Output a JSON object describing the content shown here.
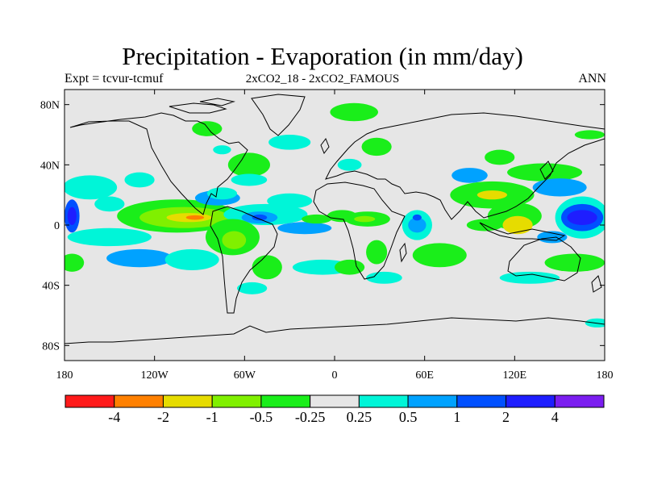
{
  "title": "Precipitation - Evaporation (in mm/day)",
  "left_string": "Expt = tcvur-tcmuf",
  "center_string": "2xCO2_18 - 2xCO2_FAMOUS",
  "right_string": "ANN",
  "map": {
    "projection": "cylindrical equidistant",
    "lon_range": [
      -180,
      180
    ],
    "lat_range": [
      -90,
      90
    ],
    "background_color": "#e6e6e6",
    "lon_ticks": [
      {
        "value": -180,
        "label": "180"
      },
      {
        "value": -120,
        "label": "120W"
      },
      {
        "value": -60,
        "label": "60W"
      },
      {
        "value": 0,
        "label": "0"
      },
      {
        "value": 60,
        "label": "60E"
      },
      {
        "value": 120,
        "label": "120E"
      },
      {
        "value": 180,
        "label": "180"
      }
    ],
    "lat_ticks": [
      {
        "value": 80,
        "label": "80N"
      },
      {
        "value": 40,
        "label": "40N"
      },
      {
        "value": 0,
        "label": "0"
      },
      {
        "value": -40,
        "label": "40S"
      },
      {
        "value": -80,
        "label": "80S"
      }
    ]
  },
  "colorbar": {
    "colors": [
      "#ff1a1a",
      "#ff8000",
      "#e6dc00",
      "#80f000",
      "#1aee1a",
      "#e6e6e6",
      "#00f5d8",
      "#00a2ff",
      "#0050ff",
      "#1e1eff",
      "#7b1ef0"
    ],
    "labels": [
      "-4",
      "-2",
      "-1",
      "-0.5",
      "-0.25",
      "0.25",
      "0.5",
      "1",
      "2",
      "4"
    ]
  },
  "anomalies": [
    {
      "lon": -163,
      "lat": 25,
      "rx": 18,
      "ry": 8,
      "level": 6
    },
    {
      "lon": -150,
      "lat": 14,
      "rx": 10,
      "ry": 5,
      "level": 6
    },
    {
      "lon": -130,
      "lat": 30,
      "rx": 10,
      "ry": 5,
      "level": 6
    },
    {
      "lon": -175,
      "lat": 6,
      "rx": 5,
      "ry": 11,
      "level": 8
    },
    {
      "lon": -175,
      "lat": 6,
      "rx": 3,
      "ry": 6,
      "level": 9
    },
    {
      "lon": -105,
      "lat": 6,
      "rx": 40,
      "ry": 11,
      "level": 4
    },
    {
      "lon": -100,
      "lat": 5,
      "rx": 30,
      "ry": 7,
      "level": 3
    },
    {
      "lon": -97,
      "lat": 5,
      "rx": 15,
      "ry": 3,
      "level": 2
    },
    {
      "lon": -93,
      "lat": 5,
      "rx": 6,
      "ry": 1.5,
      "level": 1
    },
    {
      "lon": -78,
      "lat": 18,
      "rx": 15,
      "ry": 5,
      "level": 7
    },
    {
      "lon": -75,
      "lat": 21,
      "rx": 10,
      "ry": 4,
      "level": 6
    },
    {
      "lon": -46,
      "lat": 7,
      "rx": 28,
      "ry": 7,
      "level": 6
    },
    {
      "lon": -50,
      "lat": 5,
      "rx": 12,
      "ry": 4,
      "level": 7
    },
    {
      "lon": -50,
      "lat": 5,
      "rx": 5,
      "ry": 2,
      "level": 8
    },
    {
      "lon": -57,
      "lat": 40,
      "rx": 14,
      "ry": 8,
      "level": 4
    },
    {
      "lon": -57,
      "lat": 30,
      "rx": 12,
      "ry": 4,
      "level": 6
    },
    {
      "lon": -150,
      "lat": -8,
      "rx": 28,
      "ry": 6,
      "level": 6
    },
    {
      "lon": -130,
      "lat": -22,
      "rx": 22,
      "ry": 6,
      "level": 7
    },
    {
      "lon": -95,
      "lat": -23,
      "rx": 18,
      "ry": 7,
      "level": 6
    },
    {
      "lon": -175,
      "lat": -25,
      "rx": 8,
      "ry": 6,
      "level": 4
    },
    {
      "lon": -68,
      "lat": -8,
      "rx": 18,
      "ry": 12,
      "level": 4
    },
    {
      "lon": -67,
      "lat": -10,
      "rx": 8,
      "ry": 6,
      "level": 3
    },
    {
      "lon": -45,
      "lat": -28,
      "rx": 10,
      "ry": 8,
      "level": 4
    },
    {
      "lon": -55,
      "lat": -42,
      "rx": 10,
      "ry": 4,
      "level": 6
    },
    {
      "lon": -20,
      "lat": -2,
      "rx": 18,
      "ry": 4,
      "level": 7
    },
    {
      "lon": -12,
      "lat": 4,
      "rx": 10,
      "ry": 3,
      "level": 4
    },
    {
      "lon": 5,
      "lat": 6,
      "rx": 10,
      "ry": 4,
      "level": 4
    },
    {
      "lon": 22,
      "lat": 4,
      "rx": 15,
      "ry": 5,
      "level": 4
    },
    {
      "lon": 20,
      "lat": 4,
      "rx": 7,
      "ry": 2,
      "level": 3
    },
    {
      "lon": -30,
      "lat": 16,
      "rx": 15,
      "ry": 5,
      "level": 6
    },
    {
      "lon": -8,
      "lat": -28,
      "rx": 20,
      "ry": 5,
      "level": 6
    },
    {
      "lon": 10,
      "lat": -28,
      "rx": 10,
      "ry": 5,
      "level": 4
    },
    {
      "lon": 28,
      "lat": -18,
      "rx": 7,
      "ry": 8,
      "level": 4
    },
    {
      "lon": 33,
      "lat": -35,
      "rx": 12,
      "ry": 4,
      "level": 6
    },
    {
      "lon": 13,
      "lat": 75,
      "rx": 16,
      "ry": 6,
      "level": 4
    },
    {
      "lon": 28,
      "lat": 52,
      "rx": 10,
      "ry": 6,
      "level": 4
    },
    {
      "lon": -85,
      "lat": 64,
      "rx": 10,
      "ry": 5,
      "level": 4
    },
    {
      "lon": -75,
      "lat": 50,
      "rx": 6,
      "ry": 3,
      "level": 6
    },
    {
      "lon": 10,
      "lat": 40,
      "rx": 8,
      "ry": 4,
      "level": 6
    },
    {
      "lon": 55,
      "lat": 0,
      "rx": 10,
      "ry": 10,
      "level": 6
    },
    {
      "lon": 55,
      "lat": 0,
      "rx": 6,
      "ry": 5,
      "level": 7
    },
    {
      "lon": 55,
      "lat": 5,
      "rx": 3,
      "ry": 2,
      "level": 8
    },
    {
      "lon": 70,
      "lat": -20,
      "rx": 18,
      "ry": 8,
      "level": 4
    },
    {
      "lon": 105,
      "lat": 20,
      "rx": 28,
      "ry": 9,
      "level": 4
    },
    {
      "lon": 105,
      "lat": 20,
      "rx": 10,
      "ry": 3,
      "level": 2
    },
    {
      "lon": 90,
      "lat": 33,
      "rx": 12,
      "ry": 5,
      "level": 7
    },
    {
      "lon": 120,
      "lat": 6,
      "rx": 18,
      "ry": 9,
      "level": 4
    },
    {
      "lon": 122,
      "lat": 0,
      "rx": 10,
      "ry": 6,
      "level": 2
    },
    {
      "lon": 100,
      "lat": 0,
      "rx": 12,
      "ry": 4,
      "level": 4
    },
    {
      "lon": 140,
      "lat": 35,
      "rx": 25,
      "ry": 6,
      "level": 4
    },
    {
      "lon": 165,
      "lat": 5,
      "rx": 18,
      "ry": 14,
      "level": 6
    },
    {
      "lon": 165,
      "lat": 5,
      "rx": 14,
      "ry": 9,
      "level": 8
    },
    {
      "lon": 165,
      "lat": 5,
      "rx": 10,
      "ry": 5,
      "level": 9
    },
    {
      "lon": 150,
      "lat": 25,
      "rx": 18,
      "ry": 6,
      "level": 7
    },
    {
      "lon": 160,
      "lat": -25,
      "rx": 20,
      "ry": 6,
      "level": 4
    },
    {
      "lon": 145,
      "lat": -8,
      "rx": 10,
      "ry": 4,
      "level": 7
    },
    {
      "lon": 130,
      "lat": -35,
      "rx": 20,
      "ry": 4,
      "level": 6
    },
    {
      "lon": 110,
      "lat": 45,
      "rx": 10,
      "ry": 5,
      "level": 4
    },
    {
      "lon": 170,
      "lat": 60,
      "rx": 10,
      "ry": 3,
      "level": 4
    },
    {
      "lon": -30,
      "lat": 55,
      "rx": 14,
      "ry": 5,
      "level": 6
    },
    {
      "lon": 175,
      "lat": -65,
      "rx": 8,
      "ry": 3,
      "level": 6
    }
  ]
}
